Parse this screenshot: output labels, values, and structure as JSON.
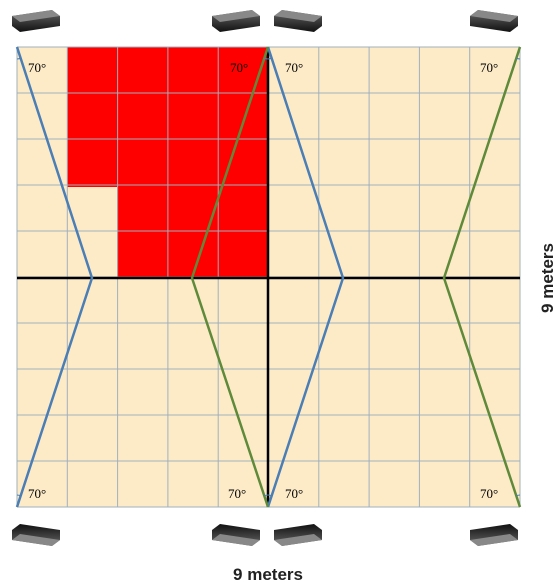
{
  "diagram": {
    "angle_labels": [
      "70°",
      "70°",
      "70°",
      "70°",
      "70°",
      "70°",
      "70°",
      "70°"
    ],
    "width_label": "9 meters",
    "height_label": "9 meters"
  }
}
